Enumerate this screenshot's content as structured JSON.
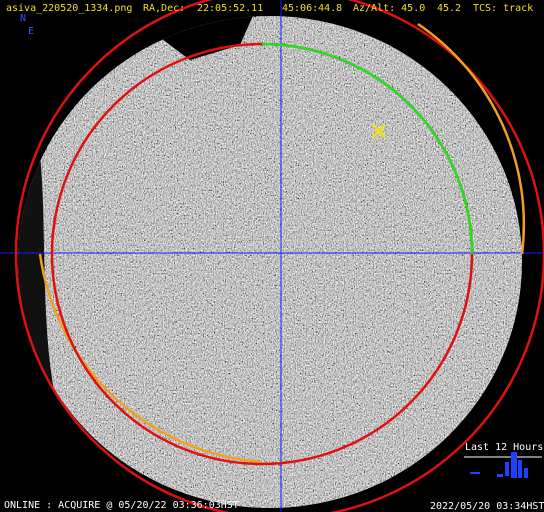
{
  "header": {
    "file": "asiva_220520_1334.png",
    "radec_label": "RA,Dec:",
    "ra": "22:05:52.11",
    "dec": "45:06:44.8",
    "azalt_label": "Az/Alt: 45.0",
    "alt": "45.2",
    "tcs": "TCS: track"
  },
  "compass": {
    "north": "N",
    "east": "E"
  },
  "history": {
    "title": "Last 12 Hours"
  },
  "footer": {
    "status": "ONLINE : ACQUIRE @ 05/20/22 03:36:03HST",
    "timestamp": "2022/05/20 03:34HST"
  }
}
